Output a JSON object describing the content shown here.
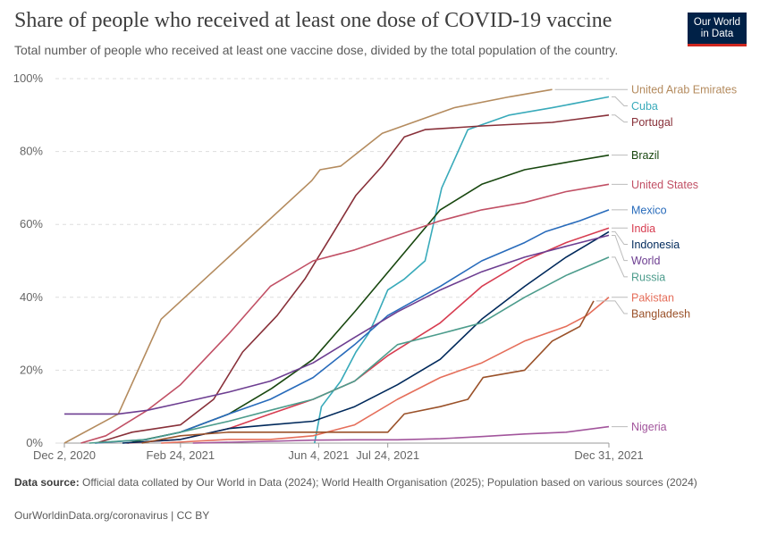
{
  "header": {
    "title": "Share of people who received at least one dose of COVID-19 vaccine",
    "subtitle": "Total number of people who received at least one vaccine dose, divided by the total population of the country.",
    "logo_line1": "Our World",
    "logo_line2": "in Data"
  },
  "footer": {
    "source_label": "Data source:",
    "source_text": "Official data collated by Our World in Data (2024); World Health Organisation (2025); Population based on various sources (2024)",
    "url_text": "OurWorldinData.org/coronavirus | CC BY"
  },
  "chart_data": {
    "type": "line",
    "y_unit": "%",
    "ylim": [
      0,
      100
    ],
    "y_ticks": [
      0,
      20,
      40,
      60,
      80,
      100
    ],
    "y_tick_labels": [
      "0%",
      "20%",
      "40%",
      "60%",
      "80%",
      "100%"
    ],
    "x_range": [
      "2020-12-02",
      "2021-12-31"
    ],
    "x_ticks": [
      "2020-12-02",
      "2021-02-24",
      "2021-06-04",
      "2021-07-24",
      "2021-12-31"
    ],
    "x_tick_labels": [
      "Dec 2, 2020",
      "Feb 24, 2021",
      "Jun 4, 2021",
      "Jul 24, 2021",
      "Dec 31, 2021"
    ],
    "grid": "horizontal dashed",
    "legend": "right, labels at line ends",
    "series": [
      {
        "name": "United Arab Emirates",
        "color": "#b48b5e",
        "points": [
          [
            "2020-12-02",
            0
          ],
          [
            "2021-01-10",
            8
          ],
          [
            "2021-02-10",
            34
          ],
          [
            "2021-05-30",
            72
          ],
          [
            "2021-06-05",
            75
          ],
          [
            "2021-06-20",
            76
          ],
          [
            "2021-07-20",
            85
          ],
          [
            "2021-09-10",
            92
          ],
          [
            "2021-10-20",
            95
          ],
          [
            "2021-11-20",
            97
          ]
        ]
      },
      {
        "name": "Cuba",
        "color": "#38aaba",
        "points": [
          [
            "2021-06-01",
            0
          ],
          [
            "2021-06-06",
            10
          ],
          [
            "2021-06-20",
            17
          ],
          [
            "2021-07-01",
            25
          ],
          [
            "2021-07-10",
            30
          ],
          [
            "2021-07-15",
            34
          ],
          [
            "2021-07-24",
            42
          ],
          [
            "2021-08-05",
            45
          ],
          [
            "2021-08-20",
            50
          ],
          [
            "2021-09-01",
            70
          ],
          [
            "2021-09-20",
            86
          ],
          [
            "2021-10-20",
            90
          ],
          [
            "2021-11-20",
            92
          ],
          [
            "2021-12-31",
            95
          ]
        ]
      },
      {
        "name": "Portugal",
        "color": "#883039",
        "points": [
          [
            "2020-12-25",
            0
          ],
          [
            "2021-01-20",
            3
          ],
          [
            "2021-02-24",
            5
          ],
          [
            "2021-03-20",
            12
          ],
          [
            "2021-04-10",
            25
          ],
          [
            "2021-05-05",
            35
          ],
          [
            "2021-05-25",
            45
          ],
          [
            "2021-06-15",
            58
          ],
          [
            "2021-07-01",
            68
          ],
          [
            "2021-07-20",
            76
          ],
          [
            "2021-08-05",
            84
          ],
          [
            "2021-08-20",
            86
          ],
          [
            "2021-09-30",
            87
          ],
          [
            "2021-11-20",
            88
          ],
          [
            "2021-12-31",
            90
          ]
        ]
      },
      {
        "name": "Brazil",
        "color": "#18470f",
        "points": [
          [
            "2021-01-17",
            0
          ],
          [
            "2021-02-24",
            3
          ],
          [
            "2021-03-31",
            8
          ],
          [
            "2021-05-01",
            15
          ],
          [
            "2021-05-31",
            23
          ],
          [
            "2021-06-30",
            36
          ],
          [
            "2021-07-31",
            50
          ],
          [
            "2021-08-31",
            64
          ],
          [
            "2021-09-30",
            71
          ],
          [
            "2021-10-31",
            75
          ],
          [
            "2021-11-30",
            77
          ],
          [
            "2021-12-31",
            79
          ]
        ]
      },
      {
        "name": "United States",
        "color": "#c15065",
        "points": [
          [
            "2020-12-14",
            0
          ],
          [
            "2021-01-01",
            2
          ],
          [
            "2021-01-31",
            9
          ],
          [
            "2021-02-24",
            16
          ],
          [
            "2021-03-31",
            30
          ],
          [
            "2021-04-30",
            43
          ],
          [
            "2021-05-31",
            50
          ],
          [
            "2021-06-30",
            53
          ],
          [
            "2021-07-31",
            57
          ],
          [
            "2021-08-31",
            61
          ],
          [
            "2021-09-30",
            64
          ],
          [
            "2021-10-31",
            66
          ],
          [
            "2021-11-30",
            69
          ],
          [
            "2021-12-31",
            71
          ]
        ]
      },
      {
        "name": "Mexico",
        "color": "#286bbb",
        "points": [
          [
            "2020-12-24",
            0
          ],
          [
            "2021-01-31",
            1
          ],
          [
            "2021-02-24",
            3
          ],
          [
            "2021-03-31",
            8
          ],
          [
            "2021-04-30",
            12
          ],
          [
            "2021-05-31",
            18
          ],
          [
            "2021-06-30",
            27
          ],
          [
            "2021-07-24",
            35
          ],
          [
            "2021-08-31",
            43
          ],
          [
            "2021-09-30",
            50
          ],
          [
            "2021-10-31",
            55
          ],
          [
            "2021-11-15",
            58
          ],
          [
            "2021-12-10",
            61
          ],
          [
            "2021-12-31",
            64
          ]
        ]
      },
      {
        "name": "India",
        "color": "#d73c50",
        "points": [
          [
            "2021-01-16",
            0
          ],
          [
            "2021-02-24",
            1
          ],
          [
            "2021-03-31",
            4
          ],
          [
            "2021-04-30",
            8
          ],
          [
            "2021-05-31",
            12
          ],
          [
            "2021-06-30",
            17
          ],
          [
            "2021-07-24",
            24
          ],
          [
            "2021-08-31",
            33
          ],
          [
            "2021-09-30",
            43
          ],
          [
            "2021-10-31",
            50
          ],
          [
            "2021-11-30",
            55
          ],
          [
            "2021-12-31",
            59
          ]
        ]
      },
      {
        "name": "Indonesia",
        "color": "#00295b",
        "points": [
          [
            "2021-01-13",
            0
          ],
          [
            "2021-02-24",
            1
          ],
          [
            "2021-03-31",
            4
          ],
          [
            "2021-04-30",
            5
          ],
          [
            "2021-05-31",
            6
          ],
          [
            "2021-06-30",
            10
          ],
          [
            "2021-07-31",
            16
          ],
          [
            "2021-08-31",
            23
          ],
          [
            "2021-09-30",
            34
          ],
          [
            "2021-10-31",
            43
          ],
          [
            "2021-11-30",
            51
          ],
          [
            "2021-12-31",
            58
          ]
        ]
      },
      {
        "name": "World",
        "color": "#6d3e91",
        "points": [
          [
            "2020-12-02",
            8
          ],
          [
            "2021-01-10",
            8
          ],
          [
            "2021-01-31",
            9
          ],
          [
            "2021-02-24",
            11
          ],
          [
            "2021-03-31",
            14
          ],
          [
            "2021-04-30",
            17
          ],
          [
            "2021-05-31",
            22
          ],
          [
            "2021-06-30",
            29
          ],
          [
            "2021-07-31",
            36
          ],
          [
            "2021-08-31",
            42
          ],
          [
            "2021-09-30",
            47
          ],
          [
            "2021-10-31",
            51
          ],
          [
            "2021-11-30",
            54
          ],
          [
            "2021-12-31",
            57
          ]
        ]
      },
      {
        "name": "Russia",
        "color": "#4c9c8c",
        "points": [
          [
            "2020-12-20",
            0
          ],
          [
            "2021-01-31",
            1
          ],
          [
            "2021-02-24",
            3
          ],
          [
            "2021-03-31",
            6
          ],
          [
            "2021-04-30",
            9
          ],
          [
            "2021-05-31",
            12
          ],
          [
            "2021-06-30",
            17
          ],
          [
            "2021-07-31",
            27
          ],
          [
            "2021-08-31",
            30
          ],
          [
            "2021-09-30",
            33
          ],
          [
            "2021-10-31",
            40
          ],
          [
            "2021-11-30",
            46
          ],
          [
            "2021-12-31",
            51
          ]
        ]
      },
      {
        "name": "Pakistan",
        "color": "#e56e5a",
        "points": [
          [
            "2021-02-10",
            0
          ],
          [
            "2021-03-31",
            1
          ],
          [
            "2021-04-30",
            1
          ],
          [
            "2021-05-31",
            2
          ],
          [
            "2021-06-30",
            5
          ],
          [
            "2021-07-31",
            12
          ],
          [
            "2021-08-31",
            18
          ],
          [
            "2021-09-30",
            22
          ],
          [
            "2021-10-31",
            28
          ],
          [
            "2021-11-30",
            32
          ],
          [
            "2021-12-15",
            35
          ],
          [
            "2021-12-31",
            40
          ]
        ]
      },
      {
        "name": "Bangladesh",
        "color": "#9a5129",
        "points": [
          [
            "2021-01-27",
            0
          ],
          [
            "2021-02-24",
            2
          ],
          [
            "2021-03-31",
            3
          ],
          [
            "2021-04-30",
            3
          ],
          [
            "2021-05-31",
            3
          ],
          [
            "2021-06-30",
            3
          ],
          [
            "2021-07-24",
            3
          ],
          [
            "2021-08-05",
            8
          ],
          [
            "2021-08-31",
            10
          ],
          [
            "2021-09-20",
            12
          ],
          [
            "2021-10-01",
            18
          ],
          [
            "2021-10-31",
            20
          ],
          [
            "2021-11-20",
            28
          ],
          [
            "2021-12-10",
            32
          ],
          [
            "2021-12-20",
            39
          ]
        ]
      },
      {
        "name": "Nigeria",
        "color": "#a2559c",
        "points": [
          [
            "2021-03-05",
            0
          ],
          [
            "2021-04-30",
            0.5
          ],
          [
            "2021-05-31",
            0.8
          ],
          [
            "2021-06-30",
            0.9
          ],
          [
            "2021-07-31",
            0.9
          ],
          [
            "2021-08-31",
            1.2
          ],
          [
            "2021-09-30",
            1.8
          ],
          [
            "2021-10-31",
            2.5
          ],
          [
            "2021-11-30",
            3
          ],
          [
            "2021-12-31",
            4.5
          ]
        ]
      }
    ]
  }
}
